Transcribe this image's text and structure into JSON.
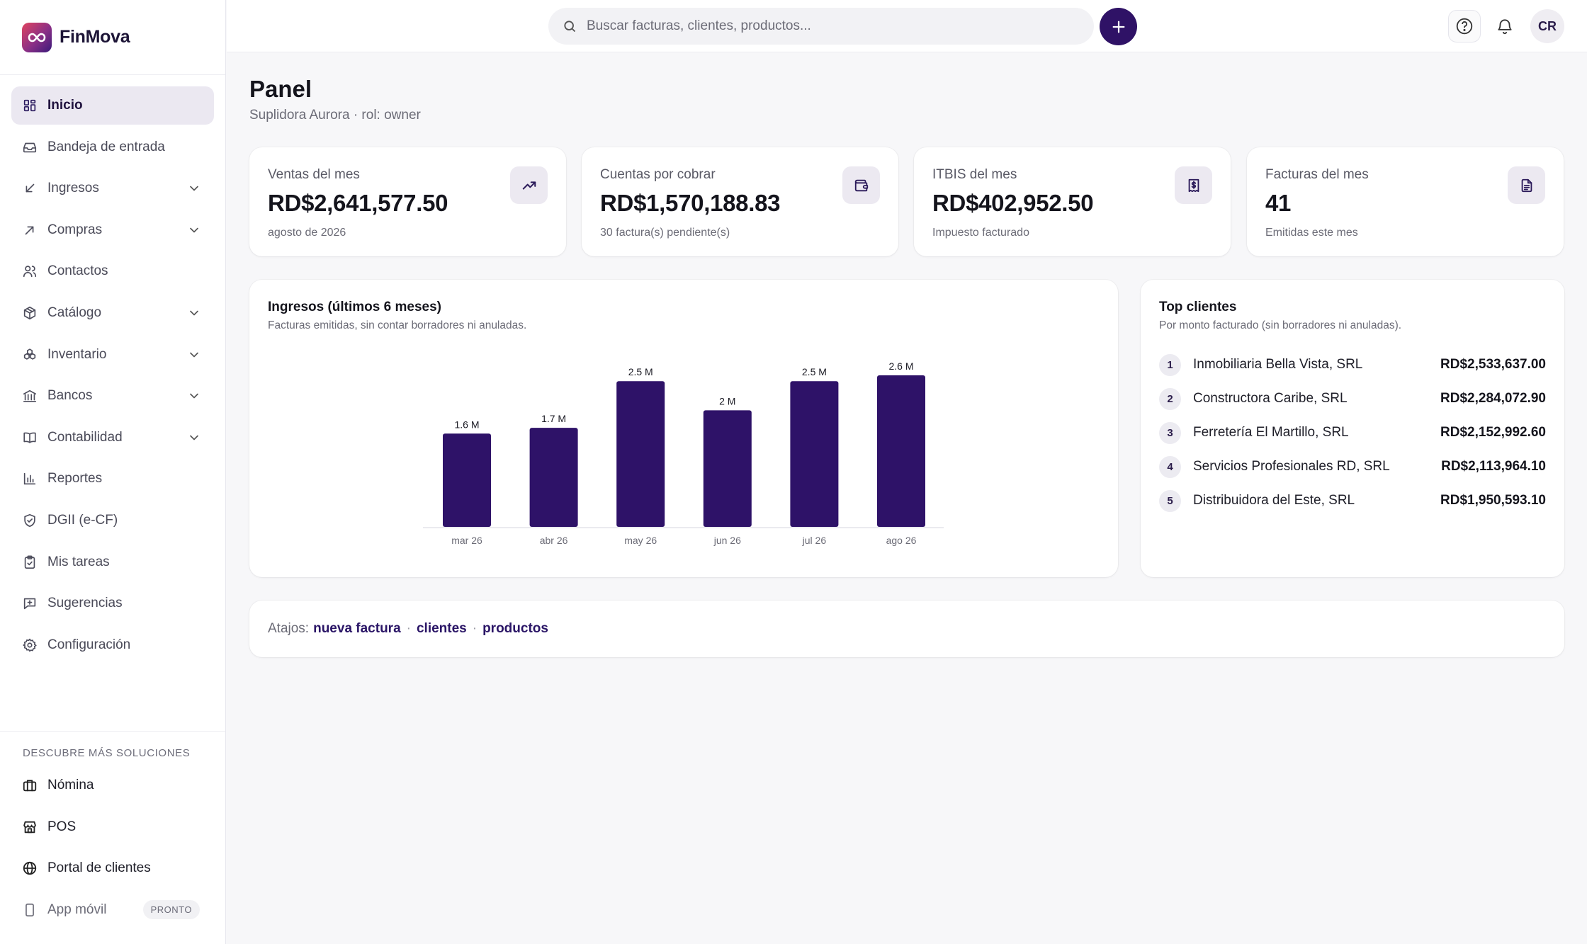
{
  "brand": {
    "name": "FinMova"
  },
  "sidebar": {
    "items": [
      {
        "label": "Inicio",
        "icon": "grid-icon",
        "active": true,
        "chevron": false
      },
      {
        "label": "Bandeja de entrada",
        "icon": "inbox-icon",
        "active": false,
        "chevron": false
      },
      {
        "label": "Ingresos",
        "icon": "arrow-down-left-icon",
        "active": false,
        "chevron": true
      },
      {
        "label": "Compras",
        "icon": "arrow-up-right-icon",
        "active": false,
        "chevron": true
      },
      {
        "label": "Contactos",
        "icon": "users-icon",
        "active": false,
        "chevron": false
      },
      {
        "label": "Catálogo",
        "icon": "package-icon",
        "active": false,
        "chevron": true
      },
      {
        "label": "Inventario",
        "icon": "boxes-icon",
        "active": false,
        "chevron": true
      },
      {
        "label": "Bancos",
        "icon": "bank-icon",
        "active": false,
        "chevron": true
      },
      {
        "label": "Contabilidad",
        "icon": "book-icon",
        "active": false,
        "chevron": true
      },
      {
        "label": "Reportes",
        "icon": "bar-chart-icon",
        "active": false,
        "chevron": false
      },
      {
        "label": "DGII (e-CF)",
        "icon": "shield-check-icon",
        "active": false,
        "chevron": false
      },
      {
        "label": "Mis tareas",
        "icon": "clipboard-check-icon",
        "active": false,
        "chevron": false
      },
      {
        "label": "Sugerencias",
        "icon": "message-plus-icon",
        "active": false,
        "chevron": false
      },
      {
        "label": "Configuración",
        "icon": "gear-icon",
        "active": false,
        "chevron": false
      }
    ],
    "solutions_title": "DESCUBRE MÁS SOLUCIONES",
    "solutions": [
      {
        "label": "Nómina",
        "icon": "briefcase-icon"
      },
      {
        "label": "POS",
        "icon": "store-icon"
      },
      {
        "label": "Portal de clientes",
        "icon": "globe-icon"
      },
      {
        "label": "App móvil",
        "icon": "smartphone-icon",
        "badge": "PRONTO"
      }
    ]
  },
  "topbar": {
    "search_placeholder": "Buscar facturas, clientes, productos...",
    "avatar_initials": "CR"
  },
  "page": {
    "title": "Panel",
    "subtitle": "Suplidora Aurora · rol: owner"
  },
  "kpis": [
    {
      "label": "Ventas del mes",
      "value": "RD$2,641,577.50",
      "note": "agosto de 2026",
      "icon": "trending-up-icon"
    },
    {
      "label": "Cuentas por cobrar",
      "value": "RD$1,570,188.83",
      "note": "30 factura(s) pendiente(s)",
      "icon": "wallet-icon"
    },
    {
      "label": "ITBIS del mes",
      "value": "RD$402,952.50",
      "note": "Impuesto facturado",
      "icon": "receipt-dollar-icon"
    },
    {
      "label": "Facturas del mes",
      "value": "41",
      "note": "Emitidas este mes",
      "icon": "file-text-icon"
    }
  ],
  "income_chart": {
    "title": "Ingresos (últimos 6 meses)",
    "subtitle": "Facturas emitidas, sin contar borradores ni anuladas."
  },
  "chart_data": {
    "type": "bar",
    "title": "Ingresos (últimos 6 meses)",
    "categories": [
      "mar 26",
      "abr 26",
      "may 26",
      "jun 26",
      "jul 26",
      "ago 26"
    ],
    "values": [
      1.6,
      1.7,
      2.5,
      2.0,
      2.5,
      2.6
    ],
    "value_labels": [
      "1.6 M",
      "1.7 M",
      "2.5 M",
      "2 M",
      "2.5 M",
      "2.6 M"
    ],
    "ylim": [
      0,
      2.6
    ],
    "grid": false,
    "bar_color": "#2e1268"
  },
  "top_clients": {
    "title": "Top clientes",
    "subtitle": "Por monto facturado (sin borradores ni anuladas).",
    "rows": [
      {
        "rank": "1",
        "name": "Inmobiliaria Bella Vista, SRL",
        "amount": "RD$2,533,637.00"
      },
      {
        "rank": "2",
        "name": "Constructora Caribe, SRL",
        "amount": "RD$2,284,072.90"
      },
      {
        "rank": "3",
        "name": "Ferretería El Martillo, SRL",
        "amount": "RD$2,152,992.60"
      },
      {
        "rank": "4",
        "name": "Servicios Profesionales RD, SRL",
        "amount": "RD$2,113,964.10"
      },
      {
        "rank": "5",
        "name": "Distribuidora del Este, SRL",
        "amount": "RD$1,950,593.10"
      }
    ]
  },
  "shortcuts": {
    "label": "Atajos:",
    "links": [
      "nueva factura",
      "clientes",
      "productos"
    ]
  },
  "colors": {
    "accent": "#2f1266",
    "active_bg": "#ebe8f1"
  }
}
